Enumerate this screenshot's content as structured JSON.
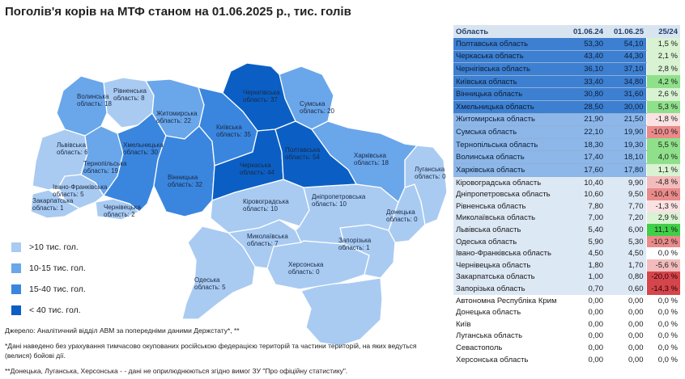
{
  "title": "Поголів'я корів на МТФ станом на 01.06.2025 р., тис. голів",
  "legend": [
    {
      "label": ">10 тис. гол.",
      "color": "#a9cbf2"
    },
    {
      "label": "10-15 тис. гол.",
      "color": "#6aa6ea"
    },
    {
      "label": "15-40 тис. гол.",
      "color": "#3a86df"
    },
    {
      "label": "< 40 тис. гол.",
      "color": "#0b5fc4"
    }
  ],
  "notes": {
    "source": "Джерело: Аналітичний відділ АВМ за попередніми даними Держстату*, **",
    "note1": "*Дані наведено без урахування тимчасово окупованих російською федерацією територій та частини територій, на яких ведуться (велися) бойові дії.",
    "note2": "**Донецька, Луганська, Херсонська - - дані не оприлюднюються згідно вимог ЗУ \"Про офіційну статистику\"."
  },
  "map_labels": {
    "volynska": {
      "name": "Волинська",
      "value": "область: 18"
    },
    "rivnenska": {
      "name": "Рівненська",
      "value": "область: 8"
    },
    "zhytomyrska": {
      "name": "Житомирська",
      "value": "область: 22"
    },
    "chernihivska": {
      "name": "Чернігівська",
      "value": "область: 37"
    },
    "sumska": {
      "name": "Сумська",
      "value": "область: 20"
    },
    "kyivska": {
      "name": "Київська",
      "value": "область: 35"
    },
    "lvivska": {
      "name": "Львівська",
      "value": "область: 6"
    },
    "khmelnytska": {
      "name": "Хмельницька",
      "value": "область: 30"
    },
    "ternopilska": {
      "name": "Тернопільська",
      "value": "область: 19"
    },
    "vinnytska": {
      "name": "Вінницька",
      "value": "область: 32"
    },
    "cherkaska": {
      "name": "Черкаська",
      "value": "область: 44"
    },
    "poltavska": {
      "name": "Полтавська",
      "value": "область: 54"
    },
    "kharkivska": {
      "name": "Харківська",
      "value": "область: 18"
    },
    "luhanska": {
      "name": "Луганська",
      "value": "область: 0"
    },
    "ivano_frankivska": {
      "name": "Івано-Франківська",
      "value": "область: 5"
    },
    "zakarpatska": {
      "name": "Закарпатська",
      "value": "область: 1"
    },
    "chernivetska": {
      "name": "Чернівецька",
      "value": "область: 2"
    },
    "kirovohradska": {
      "name": "Кіровоградська",
      "value": "область: 10"
    },
    "dnipropetrovska": {
      "name": "Дніпропетровська",
      "value": "область: 10"
    },
    "donetska": {
      "name": "Донецька",
      "value": "область: 0"
    },
    "mykolaivska": {
      "name": "Миколаївська",
      "value": "область: 7"
    },
    "zaporizka": {
      "name": "Запорізька",
      "value": "область: 1"
    },
    "khersonska": {
      "name": "Херсонська",
      "value": "область: 0"
    },
    "odeska": {
      "name": "Одеська",
      "value": "область: 5"
    }
  },
  "table": {
    "headers": [
      "Область",
      "01.06.24",
      "01.06.25",
      "25/24"
    ],
    "rows": [
      {
        "region": "Полтавська область",
        "v24": "53,30",
        "v25": "54,10",
        "change": "1,5 %",
        "change_num": 1.5,
        "tier": 4
      },
      {
        "region": "Черкаська область",
        "v24": "43,40",
        "v25": "44,30",
        "change": "2,1 %",
        "change_num": 2.1,
        "tier": 4
      },
      {
        "region": "Чернігівська область",
        "v24": "36,10",
        "v25": "37,10",
        "change": "2,8 %",
        "change_num": 2.8,
        "tier": 4
      },
      {
        "region": "Київська область",
        "v24": "33,40",
        "v25": "34,80",
        "change": "4,2 %",
        "change_num": 4.2,
        "tier": 4
      },
      {
        "region": "Вінницька область",
        "v24": "30,80",
        "v25": "31,60",
        "change": "2,6 %",
        "change_num": 2.6,
        "tier": 4
      },
      {
        "region": "Хмельницька область",
        "v24": "28,50",
        "v25": "30,00",
        "change": "5,3 %",
        "change_num": 5.3,
        "tier": 4
      },
      {
        "region": "Житомирська область",
        "v24": "21,90",
        "v25": "21,50",
        "change": "-1,8 %",
        "change_num": -1.8,
        "tier": 3
      },
      {
        "region": "Сумська область",
        "v24": "22,10",
        "v25": "19,90",
        "change": "-10,0 %",
        "change_num": -10.0,
        "tier": 3
      },
      {
        "region": "Тернопільська область",
        "v24": "18,30",
        "v25": "19,30",
        "change": "5,5 %",
        "change_num": 5.5,
        "tier": 3
      },
      {
        "region": "Волинська область",
        "v24": "17,40",
        "v25": "18,10",
        "change": "4,0 %",
        "change_num": 4.0,
        "tier": 3
      },
      {
        "region": "Харківська область",
        "v24": "17,60",
        "v25": "17,80",
        "change": "1,1 %",
        "change_num": 1.1,
        "tier": 3
      },
      {
        "region": "Кіровоградська область",
        "v24": "10,40",
        "v25": "9,90",
        "change": "-4,8 %",
        "change_num": -4.8,
        "tier": 1
      },
      {
        "region": "Дніпропетровська область",
        "v24": "10,60",
        "v25": "9,50",
        "change": "-10,4 %",
        "change_num": -10.4,
        "tier": 1
      },
      {
        "region": "Рівненська область",
        "v24": "7,80",
        "v25": "7,70",
        "change": "-1,3 %",
        "change_num": -1.3,
        "tier": 1
      },
      {
        "region": "Миколаївська область",
        "v24": "7,00",
        "v25": "7,20",
        "change": "2,9 %",
        "change_num": 2.9,
        "tier": 1
      },
      {
        "region": "Львівська область",
        "v24": "5,40",
        "v25": "6,00",
        "change": "11,1 %",
        "change_num": 11.1,
        "tier": 1
      },
      {
        "region": "Одеська область",
        "v24": "5,90",
        "v25": "5,30",
        "change": "-10,2 %",
        "change_num": -10.2,
        "tier": 1
      },
      {
        "region": "Івано-Франківська область",
        "v24": "4,50",
        "v25": "4,50",
        "change": "0,0 %",
        "change_num": 0.0,
        "tier": 1
      },
      {
        "region": "Чернівецька область",
        "v24": "1,80",
        "v25": "1,70",
        "change": "-5,6 %",
        "change_num": -5.6,
        "tier": 1
      },
      {
        "region": "Закарпатська область",
        "v24": "1,00",
        "v25": "0,80",
        "change": "-20,0 %",
        "change_num": -20.0,
        "tier": 1
      },
      {
        "region": "Запорізька область",
        "v24": "0,70",
        "v25": "0,60",
        "change": "-14,3 %",
        "change_num": -14.3,
        "tier": 1
      },
      {
        "region": "Автономна Республіка Крим",
        "v24": "0,00",
        "v25": "0,00",
        "change": "0,0 %",
        "change_num": 0.0,
        "tier": 0
      },
      {
        "region": "Донецька область",
        "v24": "0,00",
        "v25": "0,00",
        "change": "0,0 %",
        "change_num": 0.0,
        "tier": 0
      },
      {
        "region": "Київ",
        "v24": "0,00",
        "v25": "0,00",
        "change": "0,0 %",
        "change_num": 0.0,
        "tier": 0
      },
      {
        "region": "Луганська область",
        "v24": "0,00",
        "v25": "0,00",
        "change": "0,0 %",
        "change_num": 0.0,
        "tier": 0
      },
      {
        "region": "Севастополь",
        "v24": "0,00",
        "v25": "0,00",
        "change": "0,0 %",
        "change_num": 0.0,
        "tier": 0
      },
      {
        "region": "Херсонська область",
        "v24": "0,00",
        "v25": "0,00",
        "change": "0,0 %",
        "change_num": 0.0,
        "tier": 0
      }
    ]
  }
}
